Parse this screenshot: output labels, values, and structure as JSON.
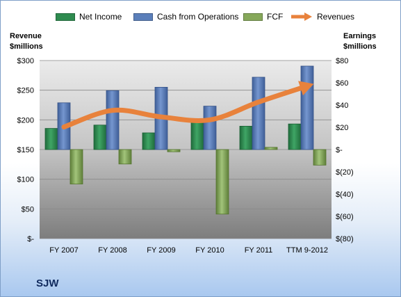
{
  "company": "SJW",
  "legend": {
    "net_income": "Net Income",
    "cash_ops": "Cash from Operations",
    "fcf": "FCF",
    "revenues": "Revenues"
  },
  "axis_titles": {
    "left_line1": "Revenue",
    "left_line2": "$millions",
    "right_line1": "Earnings",
    "right_line2": "$millions"
  },
  "colors": {
    "net_income": "#2e8b4f",
    "cash_ops": "#5b7fba",
    "fcf": "#86a85a",
    "revenues": "#e8823c",
    "plot_top": "#ebebeb",
    "plot_bottom": "#7d7d7d"
  },
  "chart_data": {
    "type": "bar",
    "categories": [
      "FY 2007",
      "FY 2008",
      "FY 2009",
      "FY 2010",
      "FY 2011",
      "TTM 9-2012"
    ],
    "left_axis": {
      "label": "Revenue $millions",
      "ylim": [
        0,
        300
      ],
      "ticks": [
        0,
        50,
        100,
        150,
        200,
        250,
        300
      ],
      "tick_labels": [
        "$-",
        "$50",
        "$100",
        "$150",
        "$200",
        "$250",
        "$300"
      ]
    },
    "right_axis": {
      "label": "Earnings $millions",
      "ylim": [
        -80,
        80
      ],
      "ticks": [
        -80,
        -60,
        -40,
        -20,
        0,
        20,
        40,
        60,
        80
      ],
      "tick_labels": [
        "$(80)",
        "$(60)",
        "$(40)",
        "$(20)",
        "$-",
        "$20",
        "$40",
        "$60",
        "$80"
      ]
    },
    "series": [
      {
        "name": "Net Income",
        "type": "bar",
        "axis": "right",
        "values": [
          19,
          22,
          15,
          25,
          21,
          23
        ]
      },
      {
        "name": "Cash from Operations",
        "type": "bar",
        "axis": "right",
        "values": [
          42,
          53,
          56,
          39,
          65,
          75
        ]
      },
      {
        "name": "FCF",
        "type": "bar",
        "axis": "right",
        "values": [
          -31,
          -13,
          -2,
          -58,
          2,
          -14
        ]
      },
      {
        "name": "Revenues",
        "type": "line",
        "axis": "left",
        "values": [
          188,
          216,
          205,
          200,
          230,
          257
        ]
      }
    ],
    "grid": true,
    "legend_position": "top"
  }
}
